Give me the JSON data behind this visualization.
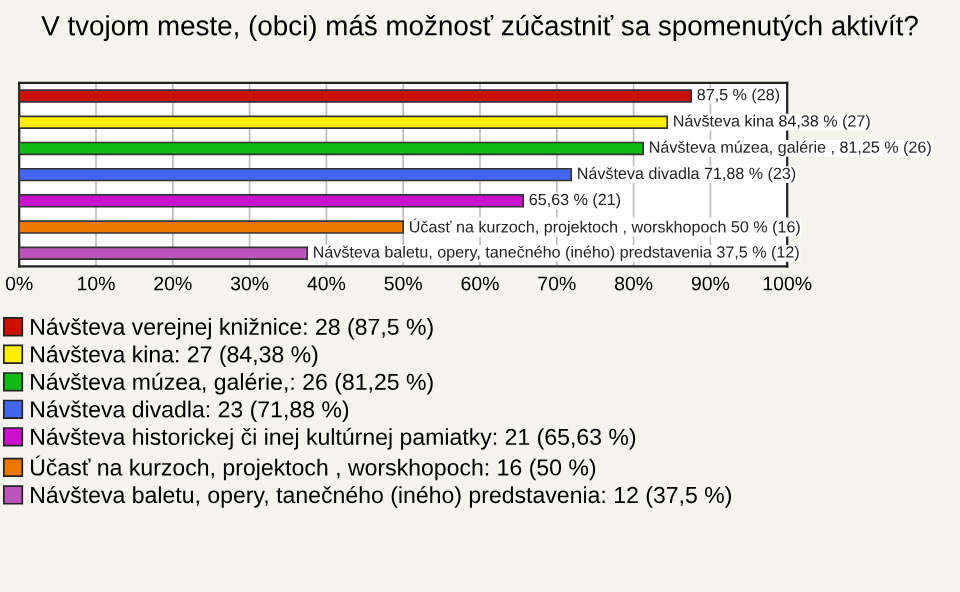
{
  "chart_data": {
    "type": "bar",
    "orientation": "horizontal",
    "stacked": true,
    "title": "V tvojom meste, (obci) máš možnosť zúčastniť sa spomenutých aktivít?",
    "categories": [
      null,
      null,
      null,
      null,
      null,
      null,
      null
    ],
    "series": [
      {
        "name": "Návšteva verejnej knižnice: 28 (87,5 %)",
        "color": "#cc1100",
        "values": [
          87.5,
          null,
          null,
          null,
          null,
          null,
          null
        ],
        "value_labels": [
          "87,5 % (28)",
          null,
          null,
          null,
          null,
          null,
          null
        ]
      },
      {
        "name": "Návšteva kina: 27 (84,38 %)",
        "color": "#ffee00",
        "values": [
          null,
          84.38,
          null,
          null,
          null,
          null,
          null
        ],
        "value_labels": [
          null,
          "Návšteva kina 84,38 % (27)",
          null,
          null,
          null,
          null,
          null
        ]
      },
      {
        "name": "Návšteva múzea, galérie,: 26 (81,25 %)",
        "color": "#11bb11",
        "values": [
          null,
          null,
          81.25,
          null,
          null,
          null,
          null
        ],
        "value_labels": [
          null,
          null,
          "Návšteva múzea, galérie , 81,25 % (26)",
          null,
          null,
          null,
          null
        ]
      },
      {
        "name": "Návšteva divadla: 23 (71,88 %)",
        "color": "#4466ee",
        "values": [
          null,
          null,
          null,
          71.88,
          null,
          null,
          null
        ],
        "value_labels": [
          null,
          null,
          null,
          "Návšteva divadla 71,88 % (23)",
          null,
          null,
          null
        ]
      },
      {
        "name": "Návšteva historickej či inej kultúrnej pamiatky: 21 (65,63 %)",
        "color": "#cc11cc",
        "values": [
          null,
          null,
          null,
          null,
          65.63,
          null,
          null
        ],
        "value_labels": [
          null,
          null,
          null,
          null,
          "65,63 % (21)",
          null,
          null
        ]
      },
      {
        "name": "Účasť na kurzoch, projektoch , worskhopoch: 16 (50 %)",
        "color": "#ee7700",
        "values": [
          null,
          null,
          null,
          null,
          null,
          50,
          null
        ],
        "value_labels": [
          null,
          null,
          null,
          null,
          null,
          "Účasť na kurzoch, projektoch , worskhopoch 50 % (16)",
          null
        ]
      },
      {
        "name": "Návšteva baletu, opery, tanečného (iného) predstavenia: 12 (37,5 %)",
        "color": "#bb55bb",
        "values": [
          null,
          null,
          null,
          null,
          null,
          null,
          37.5
        ],
        "value_labels": [
          null,
          null,
          null,
          null,
          null,
          null,
          "Návšteva baletu, opery, tanečného (iného) predstavenia 37,5 % (12)"
        ]
      }
    ],
    "xlim": [
      0,
      100
    ],
    "xticks": [
      {
        "value": 0,
        "label": "0%"
      },
      {
        "value": 10,
        "label": "10%"
      },
      {
        "value": 20,
        "label": "20%"
      },
      {
        "value": 30,
        "label": "30%"
      },
      {
        "value": 40,
        "label": "40%"
      },
      {
        "value": 50,
        "label": "50%"
      },
      {
        "value": 60,
        "label": "60%"
      },
      {
        "value": 70,
        "label": "70%"
      },
      {
        "value": 80,
        "label": "80%"
      },
      {
        "value": 90,
        "label": "90%"
      },
      {
        "value": 100,
        "label": "100%"
      }
    ],
    "tick_labels": "x",
    "grid": "x",
    "legend": "bottom"
  }
}
